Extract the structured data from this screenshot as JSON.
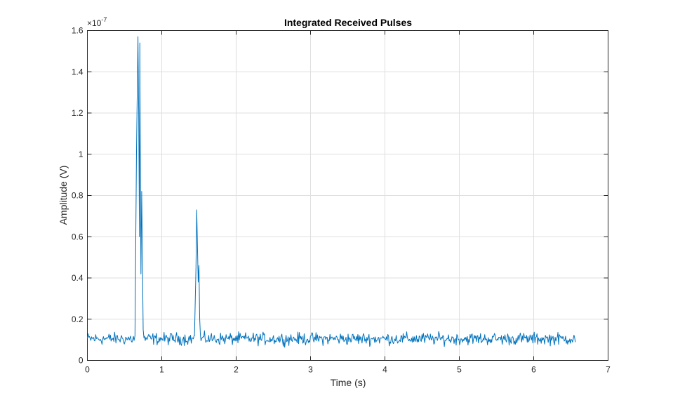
{
  "chart_data": {
    "type": "line",
    "title": "Integrated Received Pulses",
    "xlabel": "Time (s)",
    "ylabel": "Amplitude (V)",
    "y_exponent_label": "×10",
    "y_exponent_power": "-7",
    "xlim": [
      0,
      7
    ],
    "ylim": [
      0,
      1.6
    ],
    "xticks": [
      0,
      1,
      2,
      3,
      4,
      5,
      6,
      7
    ],
    "xtick_labels": [
      "0",
      "1",
      "2",
      "3",
      "4",
      "5",
      "6",
      "7"
    ],
    "yticks": [
      0,
      0.2,
      0.4,
      0.6,
      0.8,
      1,
      1.2,
      1.4,
      1.6
    ],
    "ytick_labels": [
      "0",
      "0.2",
      "0.4",
      "0.6",
      "0.8",
      "1",
      "1.2",
      "1.4",
      "1.6"
    ],
    "grid": true,
    "line_color": "#0072bd",
    "noise_floor": 0.105,
    "noise_amplitude": 0.018,
    "x_end": 6.56,
    "num_samples": 700,
    "peaks": [
      {
        "x": [
          0.64,
          0.66,
          0.68,
          0.69,
          0.7,
          0.705,
          0.71,
          0.72,
          0.73,
          0.74,
          0.75,
          0.76
        ],
        "y": [
          0.12,
          1.0,
          1.57,
          1.2,
          0.6,
          1.54,
          1.1,
          0.42,
          0.82,
          0.5,
          0.15,
          0.11
        ]
      },
      {
        "x": [
          1.44,
          1.46,
          1.47,
          1.48,
          1.49,
          1.5,
          1.51,
          1.52
        ],
        "y": [
          0.12,
          0.45,
          0.73,
          0.55,
          0.38,
          0.46,
          0.2,
          0.12
        ]
      }
    ]
  }
}
